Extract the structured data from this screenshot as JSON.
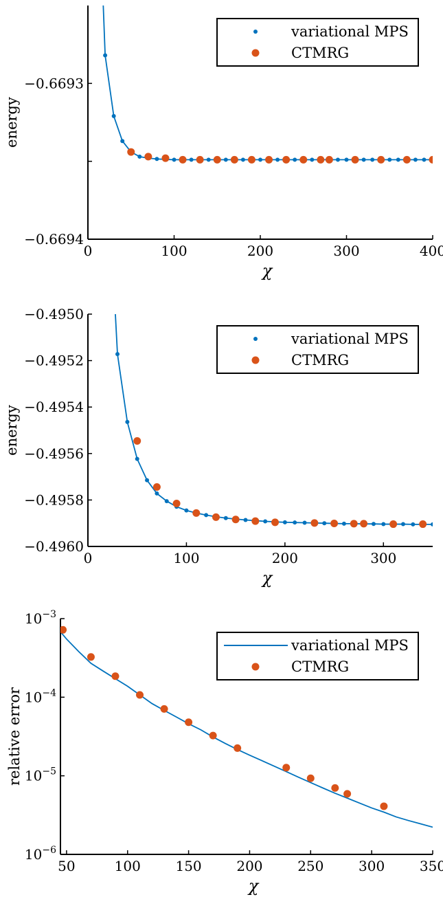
{
  "chart_data": [
    {
      "type": "scatter",
      "title": "",
      "xlabel": "χ",
      "ylabel": "energy",
      "xlim": [
        0,
        400
      ],
      "ylim": [
        -0.6694,
        -0.66925
      ],
      "xticks": [
        0,
        100,
        200,
        300,
        400
      ],
      "xtick_labels": [
        "0",
        "100",
        "200",
        "300",
        "400"
      ],
      "yticks": [
        -0.6694,
        -0.66935,
        -0.6693
      ],
      "ytick_labels": [
        "−0.6694",
        "",
        "−0.6693"
      ],
      "ylog": false,
      "grid": false,
      "legend_position": "top-right",
      "series": [
        {
          "name": "variational MPS",
          "style": "line+dots",
          "color": "#0072BD",
          "x": [
            20,
            30,
            40,
            50,
            60,
            70,
            80,
            90,
            100,
            110,
            120,
            130,
            140,
            150,
            160,
            170,
            180,
            190,
            200,
            210,
            220,
            230,
            240,
            250,
            260,
            270,
            280,
            290,
            300,
            310,
            320,
            330,
            340,
            350,
            360,
            370,
            380,
            390,
            400
          ],
          "y": [
            -0.669282,
            -0.669321,
            -0.669337,
            -0.669344,
            -0.669347,
            -0.669348,
            -0.6693485,
            -0.6693488,
            -0.669349,
            -0.669349,
            -0.669349,
            -0.669349,
            -0.669349,
            -0.669349,
            -0.669349,
            -0.669349,
            -0.669349,
            -0.669349,
            -0.669349,
            -0.669349,
            -0.669349,
            -0.669349,
            -0.669349,
            -0.669349,
            -0.669349,
            -0.669349,
            -0.669349,
            -0.669349,
            -0.669349,
            -0.669349,
            -0.669349,
            -0.669349,
            -0.669349,
            -0.669349,
            -0.669349,
            -0.669349,
            -0.669349,
            -0.669349,
            -0.669349
          ]
        },
        {
          "name": "CTMRG",
          "style": "markers",
          "color": "#D95319",
          "x": [
            50,
            70,
            90,
            110,
            130,
            150,
            170,
            190,
            210,
            230,
            250,
            270,
            280,
            310,
            340,
            370,
            400
          ],
          "y": [
            -0.669344,
            -0.669347,
            -0.669348,
            -0.669349,
            -0.669349,
            -0.669349,
            -0.669349,
            -0.669349,
            -0.669349,
            -0.669349,
            -0.669349,
            -0.669349,
            -0.669349,
            -0.669349,
            -0.669349,
            -0.669349,
            -0.669349
          ]
        }
      ]
    },
    {
      "type": "scatter",
      "title": "",
      "xlabel": "χ",
      "ylabel": "energy",
      "xlim": [
        0,
        350
      ],
      "ylim": [
        -0.496,
        -0.495
      ],
      "xticks": [
        0,
        100,
        200,
        300
      ],
      "xtick_labels": [
        "0",
        "100",
        "200",
        "300"
      ],
      "yticks": [
        -0.496,
        -0.4958,
        -0.4956,
        -0.4954,
        -0.4952,
        -0.495
      ],
      "ytick_labels": [
        "−0.4960",
        "−0.4958",
        "−0.4956",
        "−0.4954",
        "−0.4952",
        "−0.4950"
      ],
      "ylog": false,
      "grid": false,
      "legend_position": "top-right",
      "series": [
        {
          "name": "variational MPS",
          "style": "line+dots",
          "color": "#0072BD",
          "x": [
            30,
            40,
            50,
            60,
            70,
            80,
            90,
            100,
            110,
            120,
            130,
            140,
            150,
            160,
            170,
            180,
            190,
            200,
            210,
            220,
            230,
            240,
            250,
            260,
            270,
            280,
            290,
            300,
            310,
            320,
            330,
            340,
            350
          ],
          "y": [
            -0.495172,
            -0.495464,
            -0.495623,
            -0.495715,
            -0.495772,
            -0.495805,
            -0.495829,
            -0.495845,
            -0.495856,
            -0.495865,
            -0.495872,
            -0.495878,
            -0.495882,
            -0.495886,
            -0.495889,
            -0.495892,
            -0.495894,
            -0.495896,
            -0.495897,
            -0.495898,
            -0.495899,
            -0.4959,
            -0.495901,
            -0.495902,
            -0.495902,
            -0.495903,
            -0.495903,
            -0.495904,
            -0.495904,
            -0.495904,
            -0.495905,
            -0.495905,
            -0.495905
          ]
        },
        {
          "name": "CTMRG",
          "style": "markers",
          "color": "#D95319",
          "x": [
            50,
            70,
            90,
            110,
            130,
            150,
            170,
            190,
            230,
            250,
            270,
            280,
            310,
            340
          ],
          "y": [
            -0.495546,
            -0.495744,
            -0.495815,
            -0.495856,
            -0.495874,
            -0.495884,
            -0.495891,
            -0.495896,
            -0.495899,
            -0.495901,
            -0.495902,
            -0.495902,
            -0.495904,
            -0.495904
          ]
        }
      ]
    },
    {
      "type": "line",
      "title": "",
      "xlabel": "χ",
      "ylabel": "relative error",
      "xlim": [
        45,
        350
      ],
      "ylim": [
        1e-06,
        0.001
      ],
      "xticks": [
        50,
        100,
        150,
        200,
        250,
        300,
        350
      ],
      "xtick_labels": [
        "50",
        "100",
        "150",
        "200",
        "250",
        "300",
        "350"
      ],
      "yticks": [
        1e-06,
        1e-05,
        0.0001,
        0.001
      ],
      "ytick_labels": [
        "10^-6",
        "10^-5",
        "10^-4",
        "10^-3"
      ],
      "ylog": true,
      "grid": false,
      "legend_position": "top-right",
      "series": [
        {
          "name": "variational MPS",
          "style": "line",
          "color": "#0072BD",
          "x": [
            45,
            50,
            60,
            70,
            80,
            90,
            100,
            110,
            120,
            130,
            140,
            150,
            160,
            170,
            180,
            190,
            200,
            210,
            220,
            230,
            240,
            250,
            260,
            270,
            280,
            290,
            300,
            310,
            320,
            330,
            340,
            350
          ],
          "y": [
            0.00068,
            0.00055,
            0.00038,
            0.00027,
            0.000215,
            0.000172,
            0.000138,
            0.000107,
            8.3e-05,
            6.8e-05,
            5.6e-05,
            4.6e-05,
            3.85e-05,
            3.12e-05,
            2.58e-05,
            2.16e-05,
            1.83e-05,
            1.56e-05,
            1.33e-05,
            1.13e-05,
            9.6e-06,
            8.2e-06,
            7e-06,
            6e-06,
            5.2e-06,
            4.5e-06,
            3.9e-06,
            3.45e-06,
            3e-06,
            2.7e-06,
            2.45e-06,
            2.22e-06
          ]
        },
        {
          "name": "CTMRG",
          "style": "markers",
          "color": "#D95319",
          "x": [
            47,
            70,
            90,
            110,
            130,
            150,
            170,
            190,
            230,
            250,
            270,
            280,
            310
          ],
          "y": [
            0.00072,
            0.000325,
            0.000185,
            0.000107,
            7.1e-05,
            4.8e-05,
            3.25e-05,
            2.25e-05,
            1.27e-05,
            9.3e-06,
            7e-06,
            5.9e-06,
            4.1e-06
          ]
        }
      ]
    }
  ]
}
